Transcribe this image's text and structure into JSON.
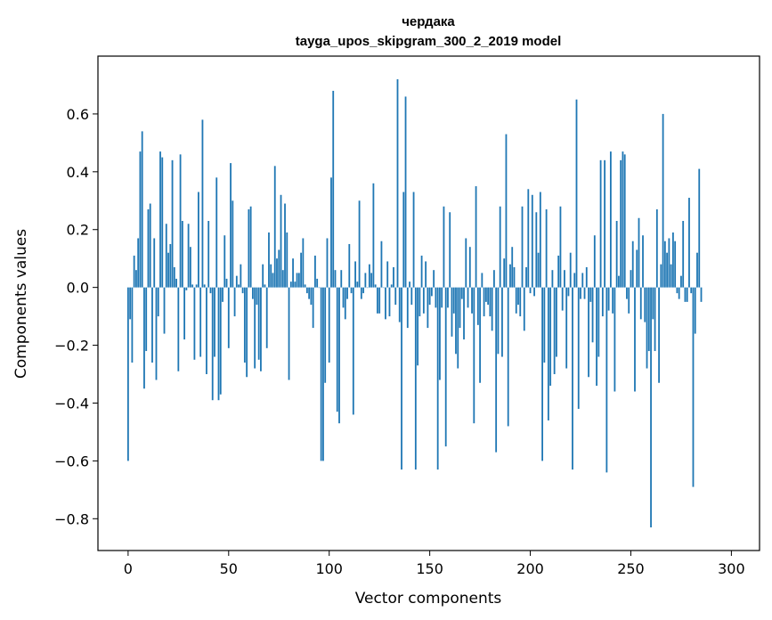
{
  "chart_data": {
    "type": "bar",
    "title": "чердака",
    "subtitle": "tayga_upos_skipgram_300_2_2019 model",
    "xlabel": "Vector components",
    "ylabel": "Components values",
    "xlim": [
      -15,
      314
    ],
    "ylim": [
      -0.91,
      0.8
    ],
    "xticks": [
      0,
      50,
      100,
      150,
      200,
      250,
      300
    ],
    "xtick_labels": [
      "0",
      "50",
      "100",
      "150",
      "200",
      "250",
      "300"
    ],
    "yticks": [
      -0.8,
      -0.6,
      -0.4,
      -0.2,
      0.0,
      0.2,
      0.4,
      0.6
    ],
    "ytick_labels": [
      "−0.8",
      "−0.6",
      "−0.4",
      "−0.2",
      "0.0",
      "0.2",
      "0.4",
      "0.6"
    ],
    "bar_color": "#1f77b4",
    "grid": false,
    "values": [
      -0.6,
      -0.11,
      -0.26,
      0.11,
      0.06,
      0.17,
      0.47,
      0.54,
      -0.35,
      -0.22,
      0.27,
      0.29,
      -0.26,
      0.17,
      -0.32,
      -0.1,
      0.47,
      0.45,
      -0.16,
      0.22,
      0.12,
      0.15,
      0.44,
      0.07,
      0.03,
      -0.29,
      0.46,
      0.23,
      -0.18,
      -0.01,
      0.22,
      0.14,
      0.01,
      -0.25,
      0.01,
      0.33,
      -0.24,
      0.58,
      0.01,
      -0.3,
      0.23,
      -0.02,
      -0.39,
      -0.24,
      0.38,
      -0.39,
      -0.37,
      -0.05,
      0.18,
      0.03,
      -0.21,
      0.43,
      0.3,
      -0.1,
      0.04,
      0.01,
      0.08,
      -0.02,
      -0.26,
      -0.31,
      0.27,
      0.28,
      -0.04,
      -0.28,
      -0.06,
      -0.25,
      -0.29,
      0.08,
      0.01,
      -0.21,
      0.19,
      0.08,
      0.05,
      0.42,
      0.1,
      0.13,
      0.32,
      0.06,
      0.29,
      0.19,
      -0.32,
      0.02,
      0.1,
      0.02,
      0.05,
      0.05,
      0.12,
      0.17,
      0.01,
      -0.02,
      -0.04,
      -0.06,
      -0.14,
      0.11,
      0.03,
      0.0,
      -0.6,
      -0.6,
      -0.33,
      0.17,
      -0.26,
      0.38,
      0.68,
      0.06,
      -0.43,
      -0.47,
      0.06,
      -0.07,
      -0.11,
      -0.04,
      0.15,
      -0.02,
      -0.44,
      0.09,
      0.02,
      0.3,
      -0.04,
      -0.02,
      0.05,
      0.0,
      0.08,
      0.05,
      0.36,
      0.01,
      -0.09,
      -0.09,
      0.16,
      0.0,
      -0.11,
      0.09,
      -0.1,
      0.01,
      0.07,
      -0.06,
      0.72,
      -0.12,
      -0.63,
      0.33,
      0.66,
      -0.14,
      0.02,
      -0.06,
      0.33,
      -0.63,
      -0.27,
      -0.1,
      0.11,
      -0.09,
      0.09,
      -0.14,
      -0.06,
      -0.03,
      0.06,
      -0.07,
      -0.63,
      -0.32,
      -0.07,
      0.28,
      -0.55,
      -0.07,
      0.26,
      -0.17,
      -0.09,
      -0.23,
      -0.28,
      -0.14,
      -0.04,
      -0.18,
      0.17,
      -0.07,
      0.14,
      -0.09,
      -0.47,
      0.35,
      -0.13,
      -0.33,
      0.05,
      -0.1,
      -0.05,
      -0.06,
      -0.1,
      -0.15,
      0.06,
      -0.57,
      -0.23,
      0.28,
      -0.24,
      0.1,
      0.53,
      -0.48,
      0.08,
      0.14,
      0.07,
      -0.09,
      -0.06,
      -0.1,
      0.28,
      -0.15,
      0.07,
      0.34,
      -0.02,
      0.32,
      -0.03,
      0.26,
      0.12,
      0.33,
      -0.6,
      -0.26,
      0.27,
      -0.46,
      -0.34,
      0.06,
      -0.3,
      -0.24,
      0.11,
      0.28,
      -0.08,
      0.06,
      -0.28,
      -0.03,
      0.12,
      -0.63,
      0.05,
      0.65,
      -0.42,
      -0.04,
      0.05,
      -0.04,
      0.07,
      -0.31,
      -0.05,
      -0.19,
      0.18,
      -0.34,
      -0.24,
      0.44,
      -0.1,
      0.44,
      -0.64,
      -0.08,
      0.47,
      -0.09,
      -0.36,
      0.23,
      0.04,
      0.44,
      0.47,
      0.46,
      -0.04,
      -0.09,
      0.06,
      0.16,
      -0.36,
      0.13,
      0.24,
      -0.11,
      0.18,
      -0.12,
      -0.28,
      -0.22,
      -0.83,
      -0.11,
      -0.22,
      0.27,
      -0.33,
      0.08,
      0.6,
      0.16,
      0.12,
      0.17,
      0.08,
      0.19,
      0.16,
      -0.02,
      -0.04,
      0.04,
      0.23,
      -0.05,
      -0.05,
      0.31,
      -0.02,
      -0.69,
      -0.16,
      0.12,
      0.41,
      -0.05
    ]
  }
}
